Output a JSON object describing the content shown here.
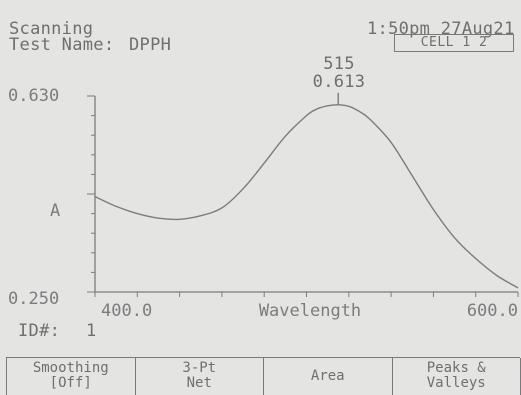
{
  "header": {
    "mode": "Scanning",
    "test_name_label": "Test Name:",
    "test_name_value": "DPPH",
    "datetime": "1:50pm 27Aug21",
    "status_indicator": "CELL 1 2"
  },
  "peak": {
    "wavelength": "515",
    "absorbance": "0.613"
  },
  "id_label": "ID#:",
  "id_value": "1",
  "softkeys": [
    {
      "line1": "Smoothing",
      "line2": "[Off]"
    },
    {
      "line1": "3-Pt",
      "line2": "Net"
    },
    {
      "line1": "Area",
      "line2": ""
    },
    {
      "line1": "Peaks &",
      "line2": "Valleys"
    }
  ],
  "chart_data": {
    "type": "line",
    "title": "",
    "xlabel": "Wavelength",
    "ylabel": "A",
    "xlim": [
      400.0,
      600.0
    ],
    "ylim": [
      0.25,
      0.63
    ],
    "x_tick_labels": [
      "400.0",
      "600.0"
    ],
    "y_tick_labels": [
      "0.630",
      "0.250"
    ],
    "grid": false,
    "series": [
      {
        "x": [
          400,
          410,
          420,
          430,
          440,
          450,
          460,
          470,
          480,
          490,
          500,
          505,
          510,
          515,
          520,
          525,
          530,
          540,
          550,
          560,
          570,
          580,
          590,
          600
        ],
        "y": [
          0.435,
          0.416,
          0.402,
          0.393,
          0.391,
          0.398,
          0.413,
          0.45,
          0.5,
          0.552,
          0.592,
          0.605,
          0.611,
          0.613,
          0.61,
          0.6,
          0.585,
          0.54,
          0.475,
          0.41,
          0.355,
          0.315,
          0.282,
          0.258
        ]
      }
    ],
    "annotation": {
      "x": 515,
      "y": 0.613
    }
  }
}
